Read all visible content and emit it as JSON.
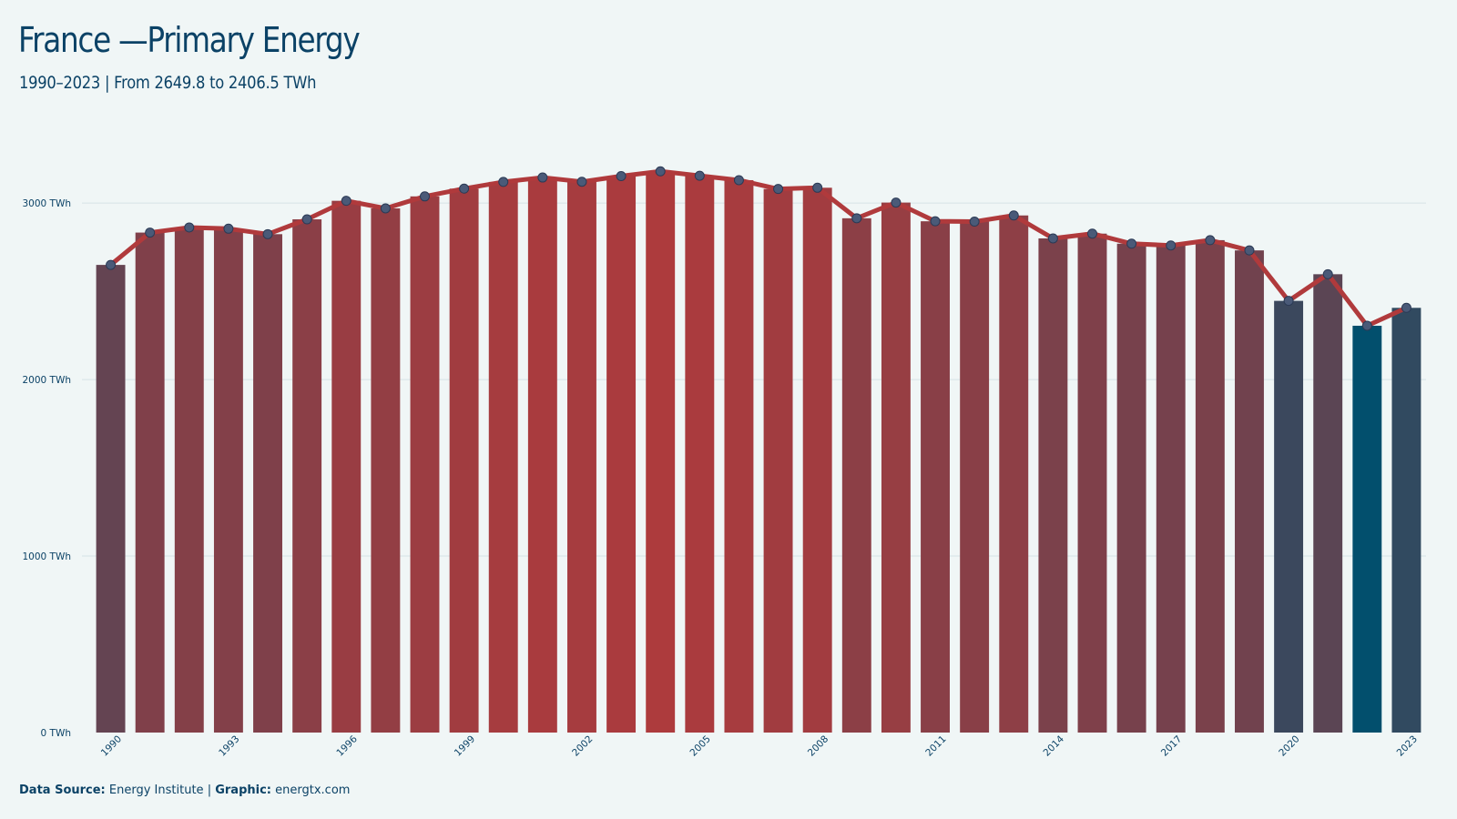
{
  "header": {
    "title": "France —Primary Energy",
    "subtitle": "1990–2023 | From 2649.8 to 2406.5 TWh"
  },
  "footer": {
    "source_label": "Data Source:",
    "source_value": "Energy Institute",
    "separator": "|",
    "graphic_label": "Graphic:",
    "graphic_value": "energtx.com"
  },
  "colors": {
    "background": "#f0f6f6",
    "text": "#0b4266",
    "line": "#b03a3c",
    "low": "#024f6d",
    "high": "#ad3b3d",
    "grid": "#d5e3e6"
  },
  "chart_data": {
    "type": "bar",
    "overlay": "line",
    "unit": "TWh",
    "x": [
      1990,
      1991,
      1992,
      1993,
      1994,
      1995,
      1996,
      1997,
      1998,
      1999,
      2000,
      2001,
      2002,
      2003,
      2004,
      2005,
      2006,
      2007,
      2008,
      2009,
      2010,
      2011,
      2012,
      2013,
      2014,
      2015,
      2016,
      2017,
      2018,
      2019,
      2020,
      2021,
      2022,
      2023
    ],
    "values": [
      2649.8,
      2833,
      2862,
      2855,
      2824,
      2908,
      3013,
      2970,
      3038,
      3082,
      3120,
      3145,
      3121,
      3153,
      3180,
      3155,
      3130,
      3080,
      3087,
      2914,
      3003,
      2897,
      2895,
      2930,
      2800,
      2827,
      2770,
      2760,
      2790,
      2732,
      2446,
      2597,
      2305,
      2406.5
    ],
    "ylim": [
      0,
      3300
    ],
    "yticks": [
      0,
      1000,
      2000,
      3000
    ],
    "ytick_labels": [
      "0 TWh",
      "1000 TWh",
      "2000 TWh",
      "3000 TWh"
    ],
    "xtick_labels": [
      "1990",
      "1993",
      "1996",
      "1999",
      "2002",
      "2005",
      "2008",
      "2011",
      "2014",
      "2017",
      "2020",
      "2023"
    ],
    "grid": true
  }
}
